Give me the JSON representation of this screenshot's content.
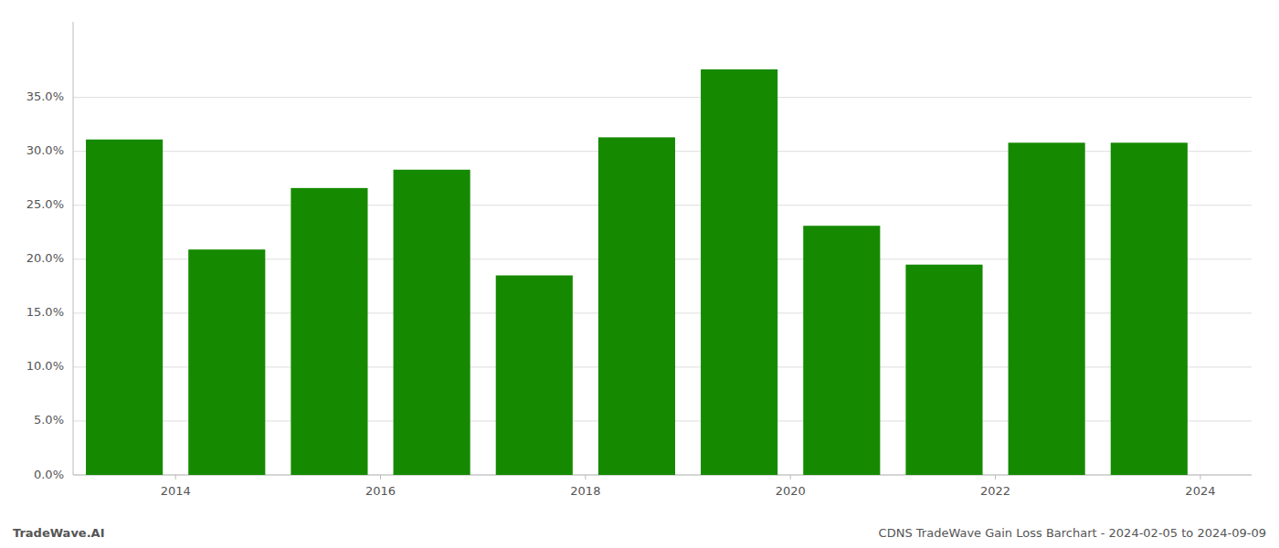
{
  "chart_data": {
    "type": "bar",
    "x": [
      2013.5,
      2014.5,
      2015.5,
      2016.5,
      2017.5,
      2018.5,
      2019.5,
      2020.5,
      2021.5,
      2022.5,
      2023.5
    ],
    "values": [
      0.311,
      0.209,
      0.266,
      0.283,
      0.185,
      0.313,
      0.376,
      0.231,
      0.195,
      0.308,
      0.308
    ],
    "color": "#158a00",
    "xlim": [
      2013.0,
      2024.5
    ],
    "xticks": [
      2014,
      2016,
      2018,
      2020,
      2022,
      2024
    ],
    "ylim": [
      0,
      0.42
    ],
    "yticks": [
      {
        "value": 0.0,
        "label": "0.0%"
      },
      {
        "value": 0.05,
        "label": "5.0%"
      },
      {
        "value": 0.1,
        "label": "10.0%"
      },
      {
        "value": 0.15,
        "label": "15.0%"
      },
      {
        "value": 0.2,
        "label": "20.0%"
      },
      {
        "value": 0.25,
        "label": "25.0%"
      },
      {
        "value": 0.3,
        "label": "30.0%"
      },
      {
        "value": 0.35,
        "label": "35.0%"
      }
    ],
    "grid": true,
    "annotations": [
      "TradeWave.AI",
      "CDNS TradeWave Gain Loss Barchart - 2024-02-05 to 2024-09-09"
    ]
  }
}
